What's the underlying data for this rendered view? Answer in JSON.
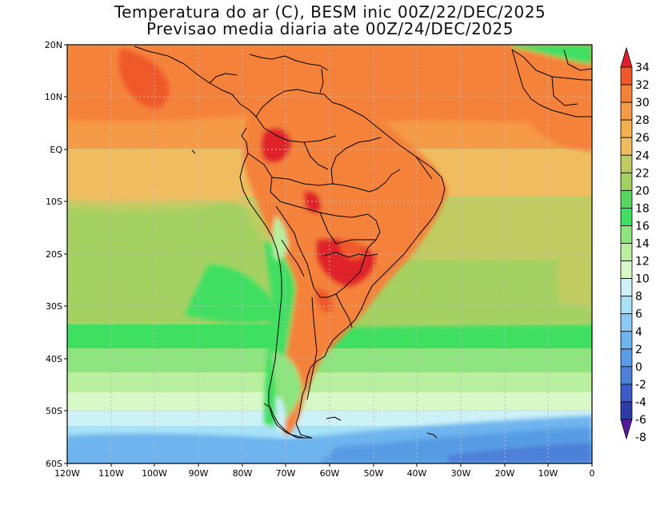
{
  "title": {
    "line1": "Temperatura do ar (C), BESM inic 00Z/22/DEC/2025",
    "line2": "Previsao media diaria ate 00Z/24/DEC/2025"
  },
  "lat_labels": [
    "20N",
    "10N",
    "EQ",
    "10S",
    "20S",
    "30S",
    "40S",
    "50S",
    "60S"
  ],
  "lon_labels": [
    "120W",
    "110W",
    "100W",
    "90W",
    "80W",
    "70W",
    "60W",
    "50W",
    "40W",
    "30W",
    "20W",
    "10W",
    "0"
  ],
  "colorbar": {
    "labels": [
      "34",
      "32",
      "30",
      "28",
      "26",
      "24",
      "22",
      "20",
      "18",
      "16",
      "14",
      "12",
      "10",
      "8",
      "6",
      "4",
      "2",
      "0",
      "-2",
      "-4",
      "-6",
      "-8"
    ],
    "colors": [
      "#e0202a",
      "#f05a2a",
      "#f5823a",
      "#f59a46",
      "#f5b04e",
      "#efbd60",
      "#c0cc62",
      "#a4d162",
      "#56d660",
      "#3fdf62",
      "#8ee57f",
      "#b8f0a0",
      "#d9f8c8",
      "#ccf2f8",
      "#a8e2f8",
      "#8ccaf6",
      "#6eb4ee",
      "#579ce4",
      "#4d80d8",
      "#3d5cc8",
      "#2e3ca8",
      "#5a1aa0"
    ]
  },
  "colors": {
    "frame": "#000000",
    "grid": "#bcbcbc",
    "coast": "#000000"
  }
}
